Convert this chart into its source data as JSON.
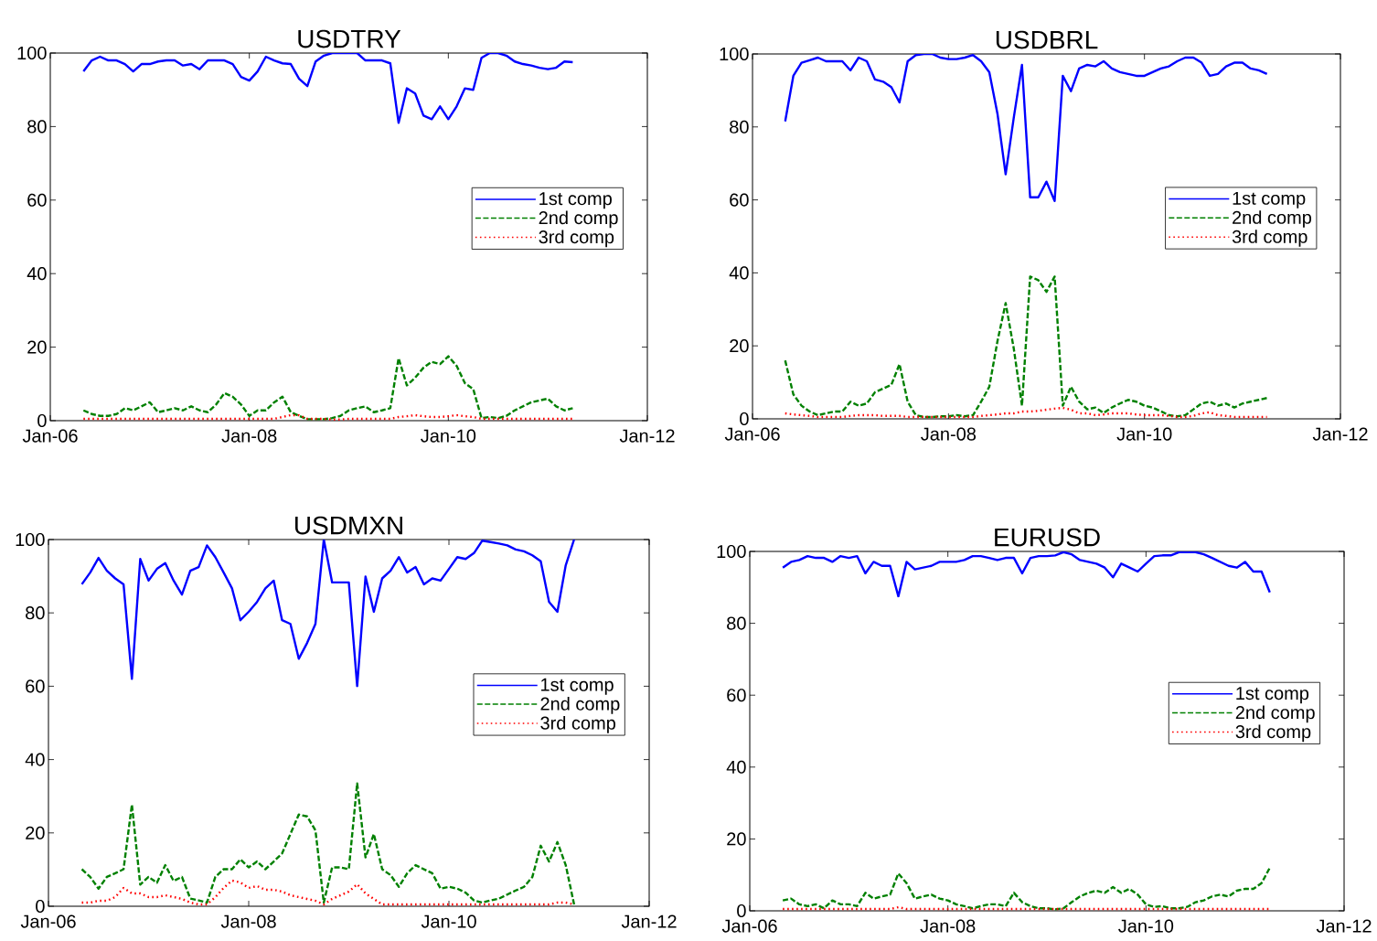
{
  "chart_data": [
    {
      "type": "line",
      "title": "USDTRY",
      "legend": "right",
      "xlim": [
        "2006-01",
        "2012-01"
      ],
      "xticks": [
        {
          "value": "2006-01",
          "label": "Jan-06"
        },
        {
          "value": "2008-01",
          "label": "Jan-08"
        },
        {
          "value": "2010-01",
          "label": "Jan-10"
        },
        {
          "value": "2012-01",
          "label": "Jan-12"
        }
      ],
      "ylim": [
        0,
        100
      ],
      "yticks": [
        0,
        20,
        40,
        60,
        80,
        100
      ],
      "x": [
        "2006-05",
        "2006-06",
        "2006-07",
        "2006-08",
        "2006-09",
        "2006-10",
        "2006-11",
        "2006-12",
        "2007-01",
        "2007-02",
        "2007-03",
        "2007-04",
        "2007-05",
        "2007-06",
        "2007-07",
        "2007-08",
        "2007-09",
        "2007-10",
        "2007-11",
        "2007-12",
        "2008-01",
        "2008-02",
        "2008-03",
        "2008-04",
        "2008-05",
        "2008-06",
        "2008-07",
        "2008-08",
        "2008-09",
        "2008-10",
        "2008-11",
        "2008-12",
        "2009-01",
        "2009-02",
        "2009-03",
        "2009-04",
        "2009-05",
        "2009-06",
        "2009-07",
        "2009-08",
        "2009-09",
        "2009-10",
        "2009-11",
        "2009-12",
        "2010-01",
        "2010-02",
        "2010-03",
        "2010-04",
        "2010-05",
        "2010-06",
        "2010-07",
        "2010-08",
        "2010-09",
        "2010-10",
        "2010-11",
        "2010-12",
        "2011-01",
        "2011-02",
        "2011-03",
        "2011-04"
      ],
      "series": [
        {
          "name": "1st comp",
          "color": "#0000ff",
          "line_style": "solid",
          "values": [
            95,
            98,
            99,
            98,
            98,
            97,
            95,
            97,
            97,
            97.7,
            98,
            98,
            96.6,
            97,
            95.6,
            98,
            98,
            98,
            97,
            93.5,
            92.5,
            95,
            99,
            98,
            97.2,
            97,
            93,
            91,
            97.7,
            99.3,
            100,
            100,
            100,
            100,
            98,
            98,
            98,
            97.2,
            81,
            90.4,
            89,
            83,
            82,
            85.5,
            82,
            85.5,
            90.4,
            90,
            98.7,
            100,
            100,
            99.3,
            97.7,
            97,
            96.6,
            96,
            95.6,
            96,
            97.7,
            97.5
          ]
        },
        {
          "name": "2nd comp",
          "color": "#008000",
          "line_style": "dashed",
          "values": [
            2.8,
            1.8,
            1.3,
            1.3,
            1.8,
            3.4,
            2.8,
            3.9,
            5,
            2.3,
            2.8,
            3.4,
            2.8,
            3.9,
            2.8,
            2.3,
            4.4,
            7.5,
            6.5,
            4.4,
            1.3,
            2.8,
            2.8,
            5,
            6.5,
            2.3,
            1.3,
            0.4,
            0.4,
            0.4,
            0.7,
            1.3,
            2.8,
            3.4,
            3.9,
            2.3,
            2.8,
            3.4,
            17,
            9.6,
            11.7,
            14.4,
            16,
            15.4,
            17.5,
            14.9,
            10.2,
            8.6,
            0.7,
            1,
            0.7,
            1.3,
            2.8,
            3.9,
            5,
            5.5,
            6,
            3.9,
            2.8,
            3.4
          ]
        },
        {
          "name": "3rd comp",
          "color": "#ff0000",
          "line_style": "dotted",
          "values": [
            0.5,
            0.5,
            0.5,
            0.5,
            0.5,
            0.5,
            0.5,
            0.5,
            0.5,
            0.5,
            0.5,
            0.5,
            0.5,
            0.5,
            0.5,
            0.5,
            0.5,
            0.5,
            0.5,
            0.5,
            0.5,
            0.5,
            0.5,
            0.5,
            1,
            1.5,
            1.5,
            0.5,
            0.5,
            0.5,
            0.3,
            0.3,
            0.5,
            0.5,
            0.5,
            0.5,
            0.5,
            0.5,
            1,
            1.2,
            1.5,
            1.2,
            1,
            1,
            1.2,
            1.5,
            1.2,
            1,
            0.5,
            0.5,
            0.5,
            0.5,
            0.5,
            0.5,
            0.5,
            0.5,
            0.5,
            0.5,
            0.5,
            0.5
          ]
        }
      ]
    },
    {
      "type": "line",
      "title": "USDBRL",
      "legend": "right",
      "xlim": [
        "2006-01",
        "2012-01"
      ],
      "xticks": [
        {
          "value": "2006-01",
          "label": "Jan-06"
        },
        {
          "value": "2008-01",
          "label": "Jan-08"
        },
        {
          "value": "2010-01",
          "label": "Jan-10"
        },
        {
          "value": "2012-01",
          "label": "Jan-12"
        }
      ],
      "ylim": [
        0,
        100
      ],
      "yticks": [
        0,
        20,
        40,
        60,
        80,
        100
      ],
      "x": [
        "2006-05",
        "2006-06",
        "2006-07",
        "2006-08",
        "2006-09",
        "2006-10",
        "2006-11",
        "2006-12",
        "2007-01",
        "2007-02",
        "2007-03",
        "2007-04",
        "2007-05",
        "2007-06",
        "2007-07",
        "2007-08",
        "2007-09",
        "2007-10",
        "2007-11",
        "2007-12",
        "2008-01",
        "2008-02",
        "2008-03",
        "2008-04",
        "2008-05",
        "2008-06",
        "2008-07",
        "2008-08",
        "2008-09",
        "2008-10",
        "2008-11",
        "2008-12",
        "2009-01",
        "2009-02",
        "2009-03",
        "2009-04",
        "2009-05",
        "2009-06",
        "2009-07",
        "2009-08",
        "2009-09",
        "2009-10",
        "2009-11",
        "2009-12",
        "2010-01",
        "2010-02",
        "2010-03",
        "2010-04",
        "2010-05",
        "2010-06",
        "2010-07",
        "2010-08",
        "2010-09",
        "2010-10",
        "2010-11",
        "2010-12",
        "2011-01",
        "2011-02",
        "2011-03",
        "2011-04"
      ],
      "series": [
        {
          "name": "1st comp",
          "color": "#0000ff",
          "line_style": "solid",
          "values": [
            81.5,
            94,
            97.6,
            98.3,
            99,
            98,
            98,
            98,
            95.5,
            99,
            98,
            93,
            92.4,
            90.9,
            86.7,
            98,
            99.7,
            100,
            100,
            99,
            98.6,
            98.6,
            99,
            99.7,
            98,
            95,
            83.6,
            67,
            82.6,
            97,
            60.7,
            60.7,
            65,
            59.7,
            94,
            89.8,
            96,
            97,
            96.6,
            98,
            96,
            95,
            94.5,
            94,
            94,
            95,
            96,
            96.6,
            98,
            99,
            99,
            97.6,
            94,
            94.5,
            96.6,
            97.6,
            97.6,
            96,
            95.5,
            94.5
          ]
        },
        {
          "name": "2nd comp",
          "color": "#008000",
          "line_style": "dashed",
          "values": [
            16,
            6.7,
            3.6,
            2,
            1,
            1.5,
            2,
            2,
            4.7,
            3.6,
            4.2,
            7.3,
            8.3,
            9.3,
            15,
            4.7,
            1,
            0.5,
            0.5,
            0.7,
            0.7,
            1,
            0.7,
            1,
            4.7,
            8.8,
            21.3,
            31.7,
            19.2,
            3.6,
            39,
            38,
            34.8,
            39,
            3.6,
            8.8,
            4.7,
            2.6,
            3.1,
            1.6,
            3.1,
            4.2,
            5.2,
            4.7,
            3.6,
            3.1,
            2.1,
            1,
            0.7,
            1,
            2.6,
            4.2,
            4.7,
            3.6,
            4.2,
            3.1,
            4.2,
            4.7,
            5.2,
            5.7
          ]
        },
        {
          "name": "3rd comp",
          "color": "#ff0000",
          "line_style": "dotted",
          "values": [
            1.5,
            1.2,
            1,
            0.8,
            0.5,
            0.5,
            0.5,
            0.5,
            0.8,
            1,
            1,
            1,
            0.8,
            0.8,
            0.8,
            0.5,
            0.5,
            0.5,
            0.5,
            0.5,
            0.5,
            0.5,
            0.5,
            0.5,
            0.8,
            1,
            1.2,
            1.5,
            1.5,
            2,
            2,
            2.2,
            2.5,
            2.8,
            3,
            2.5,
            1.5,
            1.5,
            1,
            1.2,
            1.5,
            1.5,
            1.5,
            1.2,
            1,
            1,
            1,
            0.8,
            0.5,
            0.5,
            0.8,
            1.5,
            1.8,
            1,
            0.8,
            0.5,
            0.5,
            0.5,
            0.5,
            0.5
          ]
        }
      ]
    },
    {
      "type": "line",
      "title": "USDMXN",
      "legend": "right",
      "xlim": [
        "2006-01",
        "2012-01"
      ],
      "xticks": [
        {
          "value": "2006-01",
          "label": "Jan-06"
        },
        {
          "value": "2008-01",
          "label": "Jan-08"
        },
        {
          "value": "2010-01",
          "label": "Jan-10"
        },
        {
          "value": "2012-01",
          "label": "Jan-12"
        }
      ],
      "ylim": [
        0,
        100
      ],
      "yticks": [
        0,
        20,
        40,
        60,
        80,
        100
      ],
      "x": [
        "2006-05",
        "2006-06",
        "2006-07",
        "2006-08",
        "2006-09",
        "2006-10",
        "2006-11",
        "2006-12",
        "2007-01",
        "2007-02",
        "2007-03",
        "2007-04",
        "2007-05",
        "2007-06",
        "2007-07",
        "2007-08",
        "2007-09",
        "2007-10",
        "2007-11",
        "2007-12",
        "2008-01",
        "2008-02",
        "2008-03",
        "2008-04",
        "2008-05",
        "2008-06",
        "2008-07",
        "2008-08",
        "2008-09",
        "2008-10",
        "2008-11",
        "2008-12",
        "2009-01",
        "2009-02",
        "2009-03",
        "2009-04",
        "2009-05",
        "2009-06",
        "2009-07",
        "2009-08",
        "2009-09",
        "2009-10",
        "2009-11",
        "2009-12",
        "2010-01",
        "2010-02",
        "2010-03",
        "2010-04",
        "2010-05",
        "2010-06",
        "2010-07",
        "2010-08",
        "2010-09",
        "2010-10",
        "2010-11",
        "2010-12",
        "2011-01",
        "2011-02",
        "2011-03",
        "2011-04"
      ],
      "series": [
        {
          "name": "1st comp",
          "color": "#0000ff",
          "line_style": "solid",
          "values": [
            87.8,
            91,
            95,
            91.5,
            89.4,
            87.8,
            62,
            94.7,
            88.8,
            92,
            93.6,
            88.8,
            85,
            91.5,
            92.5,
            98.4,
            95.2,
            91,
            86.7,
            78,
            80.3,
            83,
            86.7,
            88.8,
            78,
            77,
            67.5,
            71.8,
            77,
            100,
            88.3,
            88.3,
            88.3,
            60,
            89.9,
            80.3,
            89.4,
            91.5,
            95.2,
            91,
            92.5,
            87.8,
            89.4,
            88.8,
            92,
            95.2,
            94.7,
            96.3,
            99.7,
            99.3,
            98.9,
            98.4,
            97.3,
            96.8,
            95.7,
            94.1,
            83,
            80.3,
            93,
            100
          ]
        },
        {
          "name": "2nd comp",
          "color": "#008000",
          "line_style": "dashed",
          "values": [
            10.1,
            8,
            4.8,
            8,
            9,
            10.1,
            27.7,
            5.9,
            8,
            6.4,
            11.2,
            6.9,
            8,
            2.1,
            1.6,
            1,
            8,
            10.1,
            10.1,
            12.8,
            10.6,
            12.2,
            10.1,
            12.2,
            14.4,
            19.7,
            25,
            24.5,
            20.7,
            1,
            10.6,
            10.6,
            10.1,
            33.5,
            13.3,
            19.7,
            10.1,
            8.5,
            5.3,
            9,
            11.2,
            10.1,
            9,
            4.8,
            5.3,
            4.8,
            3.7,
            1.6,
            1,
            1.6,
            2.1,
            3.2,
            4.3,
            5.3,
            8,
            16.5,
            12.2,
            17.5,
            11.2,
            0.5
          ]
        },
        {
          "name": "3rd comp",
          "color": "#ff0000",
          "line_style": "dotted",
          "values": [
            1,
            1,
            1.5,
            1.5,
            2.5,
            5,
            3.5,
            3.5,
            2.5,
            2.5,
            3,
            2.5,
            2,
            1,
            0.5,
            0.5,
            2.5,
            5,
            7,
            6.5,
            5,
            5.5,
            4.5,
            4.5,
            4,
            3,
            2.5,
            2,
            1.5,
            0.5,
            2,
            3,
            4,
            6,
            3.5,
            2,
            0.5,
            0.5,
            0.5,
            0.5,
            0.5,
            0.5,
            0.5,
            0.5,
            0.5,
            0.5,
            0.5,
            0.5,
            0.5,
            0.5,
            0.5,
            0.5,
            0.5,
            0.5,
            0.5,
            0.5,
            0.5,
            1,
            1,
            0.5
          ]
        }
      ]
    },
    {
      "type": "line",
      "title": "EURUSD",
      "legend": "right",
      "xlim": [
        "2006-01",
        "2012-01"
      ],
      "xticks": [
        {
          "value": "2006-01",
          "label": "Jan-06"
        },
        {
          "value": "2008-01",
          "label": "Jan-08"
        },
        {
          "value": "2010-01",
          "label": "Jan-10"
        },
        {
          "value": "2012-01",
          "label": "Jan-12"
        }
      ],
      "ylim": [
        0,
        100
      ],
      "yticks": [
        0,
        20,
        40,
        60,
        80,
        100
      ],
      "x": [
        "2006-05",
        "2006-06",
        "2006-07",
        "2006-08",
        "2006-09",
        "2006-10",
        "2006-11",
        "2006-12",
        "2007-01",
        "2007-02",
        "2007-03",
        "2007-04",
        "2007-05",
        "2007-06",
        "2007-07",
        "2007-08",
        "2007-09",
        "2007-10",
        "2007-11",
        "2007-12",
        "2008-01",
        "2008-02",
        "2008-03",
        "2008-04",
        "2008-05",
        "2008-06",
        "2008-07",
        "2008-08",
        "2008-09",
        "2008-10",
        "2008-11",
        "2008-12",
        "2009-01",
        "2009-02",
        "2009-03",
        "2009-04",
        "2009-05",
        "2009-06",
        "2009-07",
        "2009-08",
        "2009-09",
        "2009-10",
        "2009-11",
        "2009-12",
        "2010-01",
        "2010-02",
        "2010-03",
        "2010-04",
        "2010-05",
        "2010-06",
        "2010-07",
        "2010-08",
        "2010-09",
        "2010-10",
        "2010-11",
        "2010-12",
        "2011-01",
        "2011-02",
        "2011-03",
        "2011-04"
      ],
      "series": [
        {
          "name": "1st comp",
          "color": "#0000ff",
          "line_style": "solid",
          "values": [
            95.5,
            97.1,
            97.6,
            98.7,
            98.2,
            98.2,
            97.1,
            98.7,
            98.2,
            98.7,
            93.9,
            97.1,
            96,
            96,
            87.5,
            97.1,
            95,
            95.5,
            96,
            97.1,
            97.1,
            97.1,
            97.6,
            98.7,
            98.7,
            98.2,
            97.6,
            98.2,
            98.2,
            93.9,
            98.2,
            98.7,
            98.7,
            98.9,
            99.8,
            99.2,
            97.6,
            97.1,
            96.6,
            95.5,
            92.8,
            96.6,
            95.5,
            94.4,
            96.6,
            98.7,
            98.9,
            98.9,
            99.8,
            99.8,
            99.8,
            99.2,
            98.2,
            97.1,
            96,
            95.5,
            97.1,
            94.4,
            94.4,
            88.6
          ]
        },
        {
          "name": "2nd comp",
          "color": "#008000",
          "line_style": "dashed",
          "values": [
            2.9,
            3.4,
            1.8,
            1.3,
            1.8,
            0.7,
            2.9,
            1.8,
            1.8,
            1.3,
            5,
            3.4,
            4,
            4.5,
            10.4,
            7.7,
            3.4,
            4,
            4.5,
            3.4,
            2.9,
            1.8,
            1.3,
            0.7,
            1.3,
            1.8,
            1.8,
            1.3,
            5,
            2.4,
            1.3,
            0.7,
            0.7,
            0.4,
            0.7,
            2.4,
            4,
            5,
            5.6,
            5,
            6.6,
            5,
            6.1,
            4.5,
            1.8,
            1.1,
            1.3,
            0.7,
            0.7,
            1.1,
            2.4,
            2.9,
            4,
            4.5,
            4,
            5.6,
            6.1,
            6.1,
            7.7,
            12
          ]
        },
        {
          "name": "3rd comp",
          "color": "#ff0000",
          "line_style": "dotted",
          "values": [
            0.5,
            0.5,
            0.5,
            0.5,
            0.5,
            0.5,
            0.5,
            0.5,
            0.5,
            0.5,
            0.5,
            0.5,
            0.5,
            0.5,
            1,
            0.5,
            0.5,
            0.5,
            0.5,
            0.5,
            0.5,
            0.5,
            0.5,
            0.5,
            0.5,
            0.5,
            0.5,
            0.5,
            0.5,
            0.5,
            0.5,
            0.5,
            0.5,
            0.5,
            0.5,
            0.5,
            0.5,
            0.5,
            0.5,
            0.5,
            0.5,
            0.5,
            0.5,
            0.5,
            0.5,
            0.5,
            0.5,
            0.5,
            0.5,
            0.5,
            0.5,
            0.5,
            0.5,
            0.5,
            0.5,
            0.5,
            0.5,
            0.5,
            0.5,
            0.5
          ]
        }
      ]
    }
  ]
}
